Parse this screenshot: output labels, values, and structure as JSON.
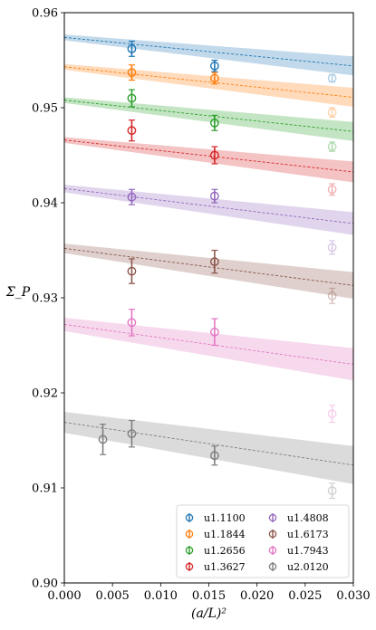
{
  "chart_data": {
    "type": "scatter",
    "xlabel": "(a/L)²",
    "ylabel": "Σ_P",
    "xlim": [
      0.0,
      0.03
    ],
    "ylim": [
      0.9,
      0.96
    ],
    "xticks": [
      "0.000",
      "0.005",
      "0.010",
      "0.015",
      "0.020",
      "0.025",
      "0.030"
    ],
    "yticks": [
      "0.90",
      "0.91",
      "0.92",
      "0.93",
      "0.94",
      "0.95",
      "0.96"
    ],
    "grid": false,
    "legend_position": "lower-right",
    "series": [
      {
        "name": "u1.1100",
        "color": "#1f77b4",
        "fit": {
          "intercept": 0.9574,
          "slope": -0.1,
          "band0": 0.0003,
          "band1": 0.001
        },
        "points": [
          {
            "x": 0.007,
            "y": 0.9562,
            "err": 0.0008,
            "faded": false
          },
          {
            "x": 0.0156,
            "y": 0.9544,
            "err": 0.0006,
            "faded": false
          },
          {
            "x": 0.0278,
            "y": 0.9531,
            "err": 0.0004,
            "faded": true
          }
        ]
      },
      {
        "name": "u1.1844",
        "color": "#ff7f0e",
        "fit": {
          "intercept": 0.9543,
          "slope": -0.107,
          "band0": 0.0003,
          "band1": 0.001
        },
        "points": [
          {
            "x": 0.007,
            "y": 0.9537,
            "err": 0.0008,
            "faded": false
          },
          {
            "x": 0.0156,
            "y": 0.9531,
            "err": 0.0006,
            "faded": false
          },
          {
            "x": 0.0278,
            "y": 0.9495,
            "err": 0.0005,
            "faded": true
          }
        ]
      },
      {
        "name": "u1.2656",
        "color": "#2ca02c",
        "fit": {
          "intercept": 0.9508,
          "slope": -0.11,
          "band0": 0.0003,
          "band1": 0.001
        },
        "points": [
          {
            "x": 0.007,
            "y": 0.951,
            "err": 0.0009,
            "faded": false
          },
          {
            "x": 0.0156,
            "y": 0.9484,
            "err": 0.0008,
            "faded": false
          },
          {
            "x": 0.0278,
            "y": 0.9459,
            "err": 0.0005,
            "faded": true
          }
        ]
      },
      {
        "name": "u1.3627",
        "color": "#d62728",
        "fit": {
          "intercept": 0.9466,
          "slope": -0.112,
          "band0": 0.0003,
          "band1": 0.0011
        },
        "points": [
          {
            "x": 0.007,
            "y": 0.9476,
            "err": 0.0011,
            "faded": false
          },
          {
            "x": 0.0156,
            "y": 0.945,
            "err": 0.0009,
            "faded": false
          },
          {
            "x": 0.0278,
            "y": 0.9414,
            "err": 0.0006,
            "faded": true
          }
        ]
      },
      {
        "name": "u1.4808",
        "color": "#9467bd",
        "fit": {
          "intercept": 0.9415,
          "slope": -0.123,
          "band0": 0.0004,
          "band1": 0.0012
        },
        "points": [
          {
            "x": 0.007,
            "y": 0.9406,
            "err": 0.0008,
            "faded": false
          },
          {
            "x": 0.0156,
            "y": 0.9407,
            "err": 0.0007,
            "faded": false
          },
          {
            "x": 0.0278,
            "y": 0.9353,
            "err": 0.0007,
            "faded": true
          }
        ]
      },
      {
        "name": "u1.6173",
        "color": "#8c564b",
        "fit": {
          "intercept": 0.9352,
          "slope": -0.13,
          "band0": 0.0005,
          "band1": 0.0014
        },
        "points": [
          {
            "x": 0.007,
            "y": 0.9328,
            "err": 0.0013,
            "faded": false
          },
          {
            "x": 0.0156,
            "y": 0.9338,
            "err": 0.0012,
            "faded": false
          },
          {
            "x": 0.0278,
            "y": 0.9302,
            "err": 0.0008,
            "faded": true
          }
        ]
      },
      {
        "name": "u1.7943",
        "color": "#e377c2",
        "fit": {
          "intercept": 0.9272,
          "slope": -0.14,
          "band0": 0.0007,
          "band1": 0.0017
        },
        "points": [
          {
            "x": 0.007,
            "y": 0.9274,
            "err": 0.0014,
            "faded": false
          },
          {
            "x": 0.0156,
            "y": 0.9264,
            "err": 0.0014,
            "faded": false
          },
          {
            "x": 0.0278,
            "y": 0.9178,
            "err": 0.0009,
            "faded": true
          }
        ]
      },
      {
        "name": "u2.0120",
        "color": "#7f7f7f",
        "fit": {
          "intercept": 0.9169,
          "slope": -0.15,
          "band0": 0.0011,
          "band1": 0.002
        },
        "points": [
          {
            "x": 0.004,
            "y": 0.9151,
            "err": 0.0016,
            "faded": false
          },
          {
            "x": 0.007,
            "y": 0.9157,
            "err": 0.0014,
            "faded": false
          },
          {
            "x": 0.0156,
            "y": 0.9134,
            "err": 0.001,
            "faded": false
          },
          {
            "x": 0.0278,
            "y": 0.9097,
            "err": 0.0008,
            "faded": true
          }
        ]
      }
    ]
  }
}
